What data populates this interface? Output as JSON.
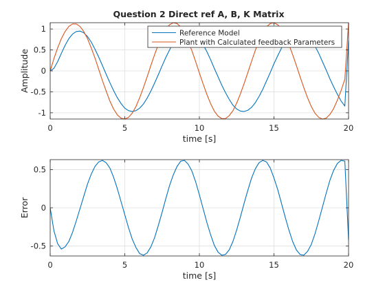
{
  "chart_data": [
    {
      "type": "line",
      "title": "Question 2 Direct ref A, B, K Matrix",
      "xlabel": "time [s]",
      "ylabel": "Amplitude",
      "xlim": [
        0,
        20
      ],
      "ylim": [
        -1.15,
        1.15
      ],
      "xticks": [
        0,
        5,
        10,
        15,
        20
      ],
      "yticks": [
        -1,
        -0.5,
        0,
        0.5,
        1
      ],
      "xtick_labels": [
        "0",
        "5",
        "10",
        "15",
        "20"
      ],
      "ytick_labels": [
        "-1",
        "-0.5",
        "0",
        "0.5",
        "1"
      ],
      "grid": true,
      "legend_position": "top-right",
      "series": [
        {
          "name": "Reference Model",
          "color": "#0072BD",
          "x": [
            0,
            0.25,
            0.5,
            0.75,
            1,
            1.25,
            1.5,
            1.75,
            2,
            2.25,
            2.5,
            2.75,
            3,
            3.25,
            3.5,
            3.75,
            4,
            4.25,
            4.5,
            4.75,
            5,
            5.25,
            5.5,
            5.75,
            6,
            6.25,
            6.5,
            6.75,
            7,
            7.25,
            7.5,
            7.75,
            8,
            8.25,
            8.5,
            8.75,
            9,
            9.25,
            9.5,
            9.75,
            10,
            10.25,
            10.5,
            10.75,
            11,
            11.25,
            11.5,
            11.75,
            12,
            12.25,
            12.5,
            12.75,
            13,
            13.25,
            13.5,
            13.75,
            14,
            14.25,
            14.5,
            14.75,
            15,
            15.25,
            15.5,
            15.75,
            16,
            16.25,
            16.5,
            16.75,
            17,
            17.25,
            17.5,
            17.75,
            18,
            18.25,
            18.5,
            18.75,
            19,
            19.25,
            19.5,
            19.75,
            20
          ],
          "y": [
            0,
            0.06,
            0.22,
            0.42,
            0.61,
            0.77,
            0.88,
            0.94,
            0.95,
            0.91,
            0.82,
            0.69,
            0.52,
            0.33,
            0.13,
            -0.08,
            -0.28,
            -0.47,
            -0.64,
            -0.78,
            -0.89,
            -0.95,
            -0.97,
            -0.95,
            -0.89,
            -0.79,
            -0.65,
            -0.48,
            -0.29,
            -0.09,
            0.12,
            0.32,
            0.5,
            0.67,
            0.8,
            0.9,
            0.96,
            0.97,
            0.95,
            0.88,
            0.77,
            0.63,
            0.46,
            0.27,
            0.06,
            -0.14,
            -0.34,
            -0.52,
            -0.68,
            -0.82,
            -0.91,
            -0.96,
            -0.97,
            -0.94,
            -0.87,
            -0.76,
            -0.61,
            -0.44,
            -0.24,
            -0.04,
            0.17,
            0.36,
            0.54,
            0.7,
            0.83,
            0.92,
            0.97,
            0.97,
            0.93,
            0.86,
            0.74,
            0.59,
            0.42,
            0.22,
            0.02,
            -0.19,
            -0.38,
            -0.56,
            -0.72,
            -0.84,
            0.72
          ]
        },
        {
          "name": "Plant with Calculated feedback Parameters",
          "color": "#D95319",
          "x": [
            0,
            0.25,
            0.5,
            0.75,
            1,
            1.25,
            1.5,
            1.75,
            2,
            2.25,
            2.5,
            2.75,
            3,
            3.25,
            3.5,
            3.75,
            4,
            4.25,
            4.5,
            4.75,
            5,
            5.25,
            5.5,
            5.75,
            6,
            6.25,
            6.5,
            6.75,
            7,
            7.25,
            7.5,
            7.75,
            8,
            8.25,
            8.5,
            8.75,
            9,
            9.25,
            9.5,
            9.75,
            10,
            10.25,
            10.5,
            10.75,
            11,
            11.25,
            11.5,
            11.75,
            12,
            12.25,
            12.5,
            12.75,
            13,
            13.25,
            13.5,
            13.75,
            14,
            14.25,
            14.5,
            14.75,
            15,
            15.25,
            15.5,
            15.75,
            16,
            16.25,
            16.5,
            16.75,
            17,
            17.25,
            17.5,
            17.75,
            18,
            18.25,
            18.5,
            18.75,
            19,
            19.25,
            19.5,
            19.75,
            20
          ],
          "y": [
            0,
            0.29,
            0.55,
            0.77,
            0.94,
            1.06,
            1.12,
            1.12,
            1.06,
            0.94,
            0.77,
            0.55,
            0.31,
            0.04,
            -0.23,
            -0.48,
            -0.72,
            -0.91,
            -1.05,
            -1.13,
            -1.15,
            -1.11,
            -1.01,
            -0.85,
            -0.64,
            -0.4,
            -0.14,
            0.13,
            0.39,
            0.63,
            0.84,
            1.0,
            1.1,
            1.15,
            1.13,
            1.05,
            0.91,
            0.71,
            0.48,
            0.22,
            -0.05,
            -0.31,
            -0.56,
            -0.78,
            -0.96,
            -1.08,
            -1.14,
            -1.14,
            -1.07,
            -0.95,
            -0.77,
            -0.55,
            -0.3,
            -0.04,
            0.23,
            0.49,
            0.72,
            0.91,
            1.05,
            1.13,
            1.15,
            1.1,
            1.0,
            0.84,
            0.63,
            0.39,
            0.13,
            -0.14,
            -0.4,
            -0.64,
            -0.85,
            -1.01,
            -1.11,
            -1.15,
            -1.13,
            -1.04,
            -0.9,
            -0.7,
            -0.47,
            -0.2,
            1.15
          ]
        }
      ]
    },
    {
      "type": "line",
      "title": "",
      "xlabel": "time [s]",
      "ylabel": "Error",
      "xlim": [
        0,
        20
      ],
      "ylim": [
        -0.63,
        0.63
      ],
      "xticks": [
        0,
        5,
        10,
        15,
        20
      ],
      "yticks": [
        -0.5,
        0,
        0.5
      ],
      "xtick_labels": [
        "0",
        "5",
        "10",
        "15",
        "20"
      ],
      "ytick_labels": [
        "-0.5",
        "0",
        "0.5"
      ],
      "grid": true,
      "series": [
        {
          "color": "#0072BD",
          "x": [
            0,
            0.25,
            0.5,
            0.75,
            1,
            1.25,
            1.5,
            1.75,
            2,
            2.25,
            2.5,
            2.75,
            3,
            3.25,
            3.5,
            3.75,
            4,
            4.25,
            4.5,
            4.75,
            5,
            5.25,
            5.5,
            5.75,
            6,
            6.25,
            6.5,
            6.75,
            7,
            7.25,
            7.5,
            7.75,
            8,
            8.25,
            8.5,
            8.75,
            9,
            9.25,
            9.5,
            9.75,
            10,
            10.25,
            10.5,
            10.75,
            11,
            11.25,
            11.5,
            11.75,
            12,
            12.25,
            12.5,
            12.75,
            13,
            13.25,
            13.5,
            13.75,
            14,
            14.25,
            14.5,
            14.75,
            15,
            15.25,
            15.5,
            15.75,
            16,
            16.25,
            16.5,
            16.75,
            17,
            17.25,
            17.5,
            17.75,
            18,
            18.25,
            18.5,
            18.75,
            19,
            19.25,
            19.5,
            19.75,
            20
          ],
          "y": [
            0,
            -0.3,
            -0.47,
            -0.54,
            -0.51,
            -0.44,
            -0.32,
            -0.17,
            -0.01,
            0.15,
            0.31,
            0.44,
            0.54,
            0.6,
            0.62,
            0.59,
            0.52,
            0.4,
            0.25,
            0.08,
            -0.09,
            -0.26,
            -0.41,
            -0.52,
            -0.6,
            -0.62,
            -0.59,
            -0.51,
            -0.39,
            -0.23,
            -0.06,
            0.12,
            0.29,
            0.43,
            0.54,
            0.61,
            0.62,
            0.57,
            0.48,
            0.34,
            0.17,
            -0.01,
            -0.19,
            -0.35,
            -0.49,
            -0.58,
            -0.62,
            -0.61,
            -0.55,
            -0.44,
            -0.29,
            -0.12,
            0.06,
            0.23,
            0.39,
            0.51,
            0.59,
            0.62,
            0.6,
            0.52,
            0.39,
            0.24,
            0.06,
            -0.12,
            -0.29,
            -0.44,
            -0.55,
            -0.61,
            -0.62,
            -0.57,
            -0.48,
            -0.34,
            -0.17,
            0.01,
            0.19,
            0.36,
            0.49,
            0.58,
            0.62,
            0.61,
            -0.42
          ]
        }
      ]
    }
  ]
}
